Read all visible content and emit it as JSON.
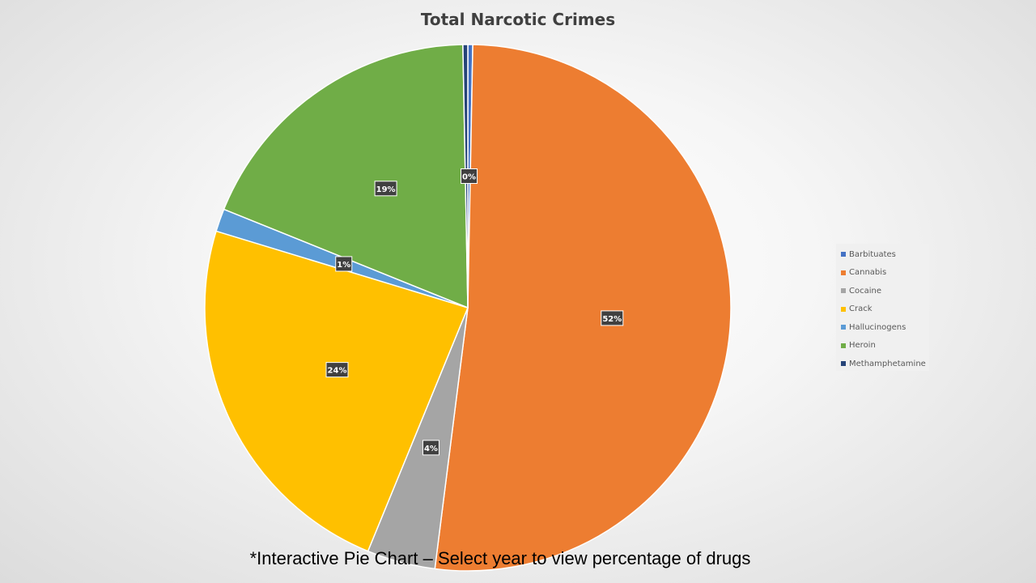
{
  "chart_data": {
    "type": "pie",
    "title": "Total Narcotic Crimes",
    "categories": [
      "Barbituates",
      "Cannabis",
      "Cocaine",
      "Crack",
      "Hallucinogens",
      "Heroin",
      "Methamphetamine"
    ],
    "values": [
      0.3,
      51.7,
      4.2,
      23.5,
      1.4,
      18.6,
      0.3
    ],
    "data_labels": [
      "0%",
      "52%",
      "4%",
      "24%",
      "1%",
      "19%",
      ""
    ],
    "colors": [
      "#4472C4",
      "#ED7D31",
      "#A5A5A5",
      "#FFC000",
      "#5B9BD5",
      "#70AD47",
      "#264478"
    ],
    "legend_position": "right"
  },
  "footnote": "*Interactive Pie Chart – Select year to view percentage of drugs"
}
